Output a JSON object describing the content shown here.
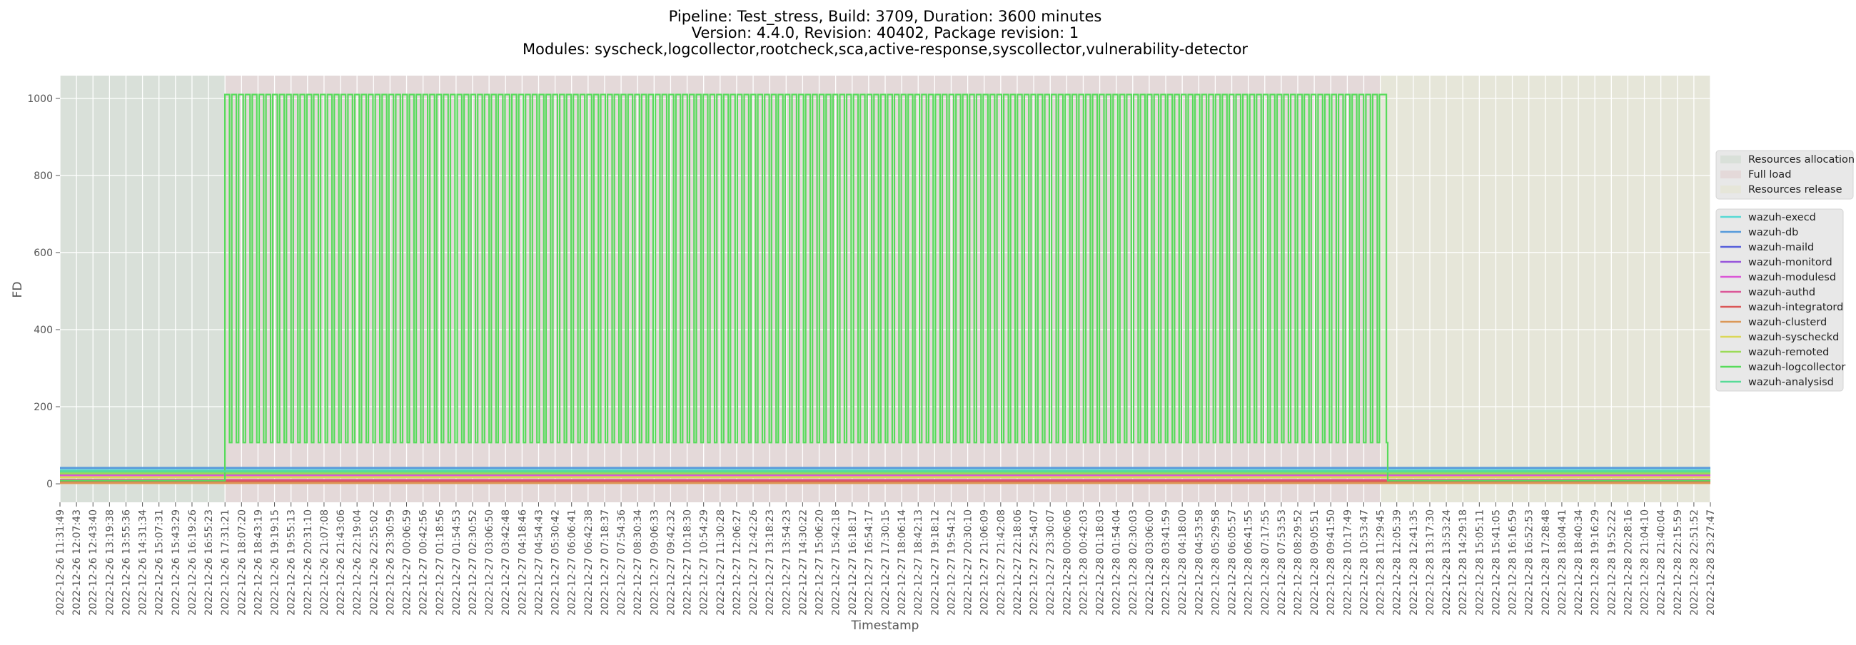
{
  "chart_data": {
    "type": "line",
    "title": [
      "Pipeline: Test_stress, Build: 3709, Duration: 3600 minutes",
      "Version: 4.4.0, Revision: 40402, Package revision: 1",
      "Modules: syscheck,logcollector,rootcheck,sca,active-response,syscollector,vulnerability-detector"
    ],
    "xlabel": "Timestamp",
    "ylabel": "FD",
    "x_unit": "minutes since 2022-12-26 11:31:49",
    "xlim": [
      0,
      3596
    ],
    "ylim": [
      -48,
      1059
    ],
    "y_ticks": [
      0,
      200,
      400,
      600,
      800,
      1000
    ],
    "grid": true,
    "legend_placement": "right-outside",
    "phases": [
      {
        "name": "Resources allocation",
        "start": 0,
        "end": 359.5,
        "color": "#d9e0d9"
      },
      {
        "name": "Full load",
        "start": 359.5,
        "end": 2878,
        "color": "#e4d9d9"
      },
      {
        "name": "Resources release",
        "start": 2878,
        "end": 3596,
        "color": "#e6e6d9"
      }
    ],
    "x_ticks": [
      "2022-12-26 11:31:49",
      "2022-12-26 12:07:43",
      "2022-12-26 12:43:40",
      "2022-12-26 13:19:38",
      "2022-12-26 13:55:36",
      "2022-12-26 14:31:34",
      "2022-12-26 15:07:31",
      "2022-12-26 15:43:29",
      "2022-12-26 16:19:26",
      "2022-12-26 16:55:23",
      "2022-12-26 17:31:21",
      "2022-12-26 18:07:20",
      "2022-12-26 18:43:19",
      "2022-12-26 19:19:15",
      "2022-12-26 19:55:13",
      "2022-12-26 20:31:10",
      "2022-12-26 21:07:08",
      "2022-12-26 21:43:06",
      "2022-12-26 22:19:04",
      "2022-12-26 22:55:02",
      "2022-12-26 23:30:59",
      "2022-12-27 00:06:59",
      "2022-12-27 00:42:56",
      "2022-12-27 01:18:56",
      "2022-12-27 01:54:53",
      "2022-12-27 02:30:52",
      "2022-12-27 03:06:50",
      "2022-12-27 03:42:48",
      "2022-12-27 04:18:46",
      "2022-12-27 04:54:43",
      "2022-12-27 05:30:42",
      "2022-12-27 06:06:41",
      "2022-12-27 06:42:38",
      "2022-12-27 07:18:37",
      "2022-12-27 07:54:36",
      "2022-12-27 08:30:34",
      "2022-12-27 09:06:33",
      "2022-12-27 09:42:32",
      "2022-12-27 10:18:30",
      "2022-12-27 10:54:29",
      "2022-12-27 11:30:28",
      "2022-12-27 12:06:27",
      "2022-12-27 12:42:26",
      "2022-12-27 13:18:23",
      "2022-12-27 13:54:23",
      "2022-12-27 14:30:22",
      "2022-12-27 15:06:20",
      "2022-12-27 15:42:18",
      "2022-12-27 16:18:17",
      "2022-12-27 16:54:17",
      "2022-12-27 17:30:15",
      "2022-12-27 18:06:14",
      "2022-12-27 18:42:13",
      "2022-12-27 19:18:12",
      "2022-12-27 19:54:12",
      "2022-12-27 20:30:10",
      "2022-12-27 21:06:09",
      "2022-12-27 21:42:08",
      "2022-12-27 22:18:06",
      "2022-12-27 22:54:07",
      "2022-12-27 23:30:07",
      "2022-12-28 00:06:06",
      "2022-12-28 00:42:03",
      "2022-12-28 01:18:03",
      "2022-12-28 01:54:04",
      "2022-12-28 02:30:03",
      "2022-12-28 03:06:00",
      "2022-12-28 03:41:59",
      "2022-12-28 04:18:00",
      "2022-12-28 04:53:58",
      "2022-12-28 05:29:58",
      "2022-12-28 06:05:57",
      "2022-12-28 06:41:55",
      "2022-12-28 07:17:55",
      "2022-12-28 07:53:53",
      "2022-12-28 08:29:52",
      "2022-12-28 09:05:51",
      "2022-12-28 09:41:50",
      "2022-12-28 10:17:49",
      "2022-12-28 10:53:47",
      "2022-12-28 11:29:45",
      "2022-12-28 12:05:39",
      "2022-12-28 12:41:35",
      "2022-12-28 13:17:30",
      "2022-12-28 13:53:24",
      "2022-12-28 14:29:18",
      "2022-12-28 15:05:11",
      "2022-12-28 15:41:05",
      "2022-12-28 16:16:59",
      "2022-12-28 16:52:53",
      "2022-12-28 17:28:48",
      "2022-12-28 18:04:41",
      "2022-12-28 18:40:34",
      "2022-12-28 19:16:29",
      "2022-12-28 19:52:22",
      "2022-12-28 20:28:16",
      "2022-12-28 21:04:10",
      "2022-12-28 21:40:04",
      "2022-12-28 22:15:59",
      "2022-12-28 22:51:52",
      "2022-12-28 23:27:47"
    ],
    "series": [
      {
        "name": "wazuh-execd",
        "color": "#57d9d4",
        "value": 35
      },
      {
        "name": "wazuh-db",
        "color": "#579bdb",
        "value": 41
      },
      {
        "name": "wazuh-maild",
        "color": "#5760db",
        "value": 7
      },
      {
        "name": "wazuh-monitord",
        "color": "#9857db",
        "value": 24
      },
      {
        "name": "wazuh-modulesd",
        "color": "#db57d7",
        "value": 21
      },
      {
        "name": "wazuh-authd",
        "color": "#db5798",
        "value": 10
      },
      {
        "name": "wazuh-integratord",
        "color": "#db5757",
        "value": 6
      },
      {
        "name": "wazuh-clusterd",
        "color": "#db9857",
        "value": 2
      },
      {
        "name": "wazuh-syscheckd",
        "color": "#dbd757",
        "value": 17
      },
      {
        "name": "wazuh-remoted",
        "color": "#9bdb57",
        "value": 27
      },
      {
        "name": "wazuh-logcollector",
        "color": "#57db5b",
        "baseline": 8,
        "wave_start": 359.5,
        "wave_end": 2890,
        "cycles": 170,
        "high": 1010,
        "low": 107,
        "high_fraction": 0.67,
        "tail_low_until": 2893,
        "dip": {
          "minute": 1025,
          "value": 944
        }
      },
      {
        "name": "wazuh-analysisd",
        "color": "#57db98",
        "value": 32
      }
    ]
  }
}
